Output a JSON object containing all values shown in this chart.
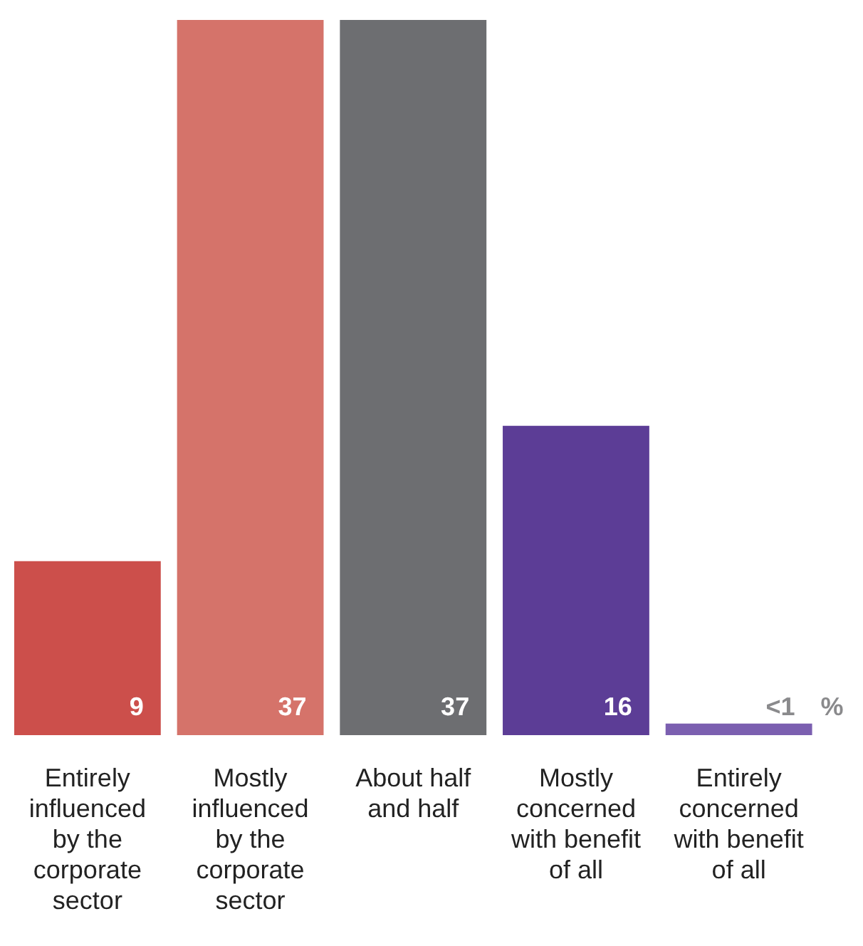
{
  "chart_data": {
    "type": "bar",
    "categories": [
      "Entirely influenced by the corporate sector",
      "Mostly influenced by the corporate sector",
      "About half and half",
      "Mostly concerned with benefit of all",
      "Entirely concerned with benefit of all"
    ],
    "values": [
      9,
      37,
      37,
      16,
      0.6
    ],
    "colors": [
      "#cc4f4b",
      "#d5736a",
      "#6d6e71",
      "#5c3d96",
      "#7b5fb0"
    ],
    "value_labels": [
      "9",
      "37",
      "37",
      "16",
      "<1"
    ],
    "ylim": [
      0,
      37
    ],
    "tick_labels": "x",
    "grid": false,
    "legend": false,
    "annotations": [
      "%"
    ]
  }
}
